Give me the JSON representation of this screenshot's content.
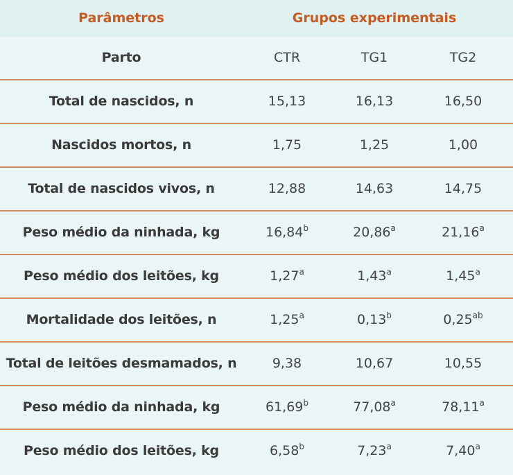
{
  "header": {
    "parameters": "Parâmetros",
    "groups": "Grupos experimentais"
  },
  "table": {
    "columns": [
      "Parto",
      "CTR",
      "TG1",
      "TG2"
    ],
    "rows": [
      {
        "label": "Total de nascidos, n",
        "cells": [
          {
            "value": "15,13"
          },
          {
            "value": "16,13"
          },
          {
            "value": "16,50"
          }
        ]
      },
      {
        "label": "Nascidos mortos, n",
        "cells": [
          {
            "value": "1,75"
          },
          {
            "value": "1,25"
          },
          {
            "value": "1,00"
          }
        ]
      },
      {
        "label": "Total de nascidos vivos, n",
        "cells": [
          {
            "value": "12,88"
          },
          {
            "value": "14,63"
          },
          {
            "value": "14,75"
          }
        ]
      },
      {
        "label": "Peso médio da ninhada, kg",
        "cells": [
          {
            "value": "16,84",
            "sup": "b"
          },
          {
            "value": "20,86",
            "sup": "a"
          },
          {
            "value": "21,16",
            "sup": "a"
          }
        ]
      },
      {
        "label": "Peso médio dos leitões, kg",
        "cells": [
          {
            "value": "1,27",
            "sup": "a"
          },
          {
            "value": "1,43",
            "sup": "a"
          },
          {
            "value": "1,45",
            "sup": "a"
          }
        ]
      },
      {
        "label": "Mortalidade dos leitões, n",
        "cells": [
          {
            "value": "1,25",
            "sup": "a"
          },
          {
            "value": "0,13",
            "sup": "b"
          },
          {
            "value": "0,25",
            "sup": "ab"
          }
        ]
      },
      {
        "label": "Total de leitões desmamados, n",
        "cells": [
          {
            "value": "9,38"
          },
          {
            "value": "10,67"
          },
          {
            "value": "10,55"
          }
        ]
      },
      {
        "label": "Peso médio da ninhada, kg",
        "cells": [
          {
            "value": "61,69",
            "sup": "b"
          },
          {
            "value": "77,08",
            "sup": "a"
          },
          {
            "value": "78,11",
            "sup": "a"
          }
        ]
      },
      {
        "label": "Peso médio dos leitões, kg",
        "cells": [
          {
            "value": "6,58",
            "sup": "b"
          },
          {
            "value": "7,23",
            "sup": "a"
          },
          {
            "value": "7,40",
            "sup": "a"
          }
        ]
      }
    ]
  }
}
